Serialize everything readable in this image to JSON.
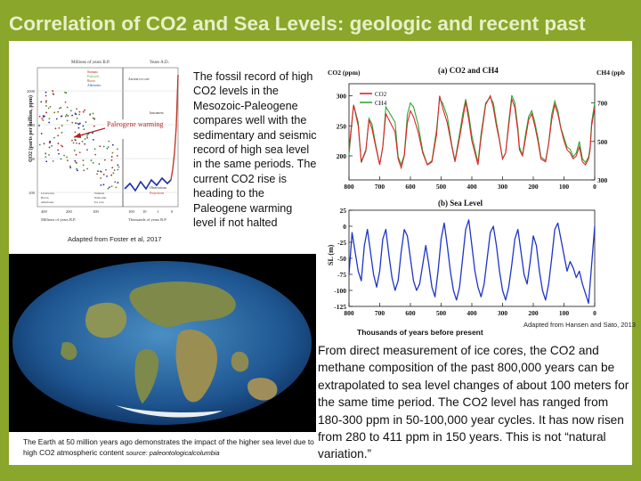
{
  "slide": {
    "title": "Correlation of CO2 and Sea Levels: geologic and recent past",
    "fossil_text": "The fossil record of high CO2 levels in the Mesozoic-Paleogene compares well with the sedimentary and seismic record of high sea level in the same periods.  The current CO2 rise is heading to the Paleogene warming level if not halted",
    "foster_caption": "Adapted from Foster et al, 2017",
    "hansen_caption": "Adapted from Hansen and Sato, 2013",
    "xaxis_note": "Thousands of years before present",
    "bottom_text": "From direct measurement of ice cores, the CO2 and methane composition of the past 800,000 years can be extrapolated to sea level changes of about 100 meters for the same time period.  The CO2 level has ranged from 180-300 ppm in 50-100,000 year cycles.  It has now risen from 280 to 411 ppm in 150 years.  This is not “natural variation.”",
    "earth_caption": "The Earth at 50 million years ago demonstrates the impact of the higher sea level due to high CO2 atmospheric content",
    "earth_source": "source: paleontologicalcolumbia"
  },
  "fossil_chart": {
    "annotation": "Paleogene warming",
    "top_axis_left": "Millions of years B.P.",
    "top_axis_right": "Years A.D.",
    "bottom_axis_left": "Millions of years B.P.",
    "bottom_axis_right": "Thousands of years B.P.",
    "ylabel": "CO2 (parts per million, ppm)",
    "y_ticks": [
      "2000",
      "1000",
      "500",
      "200"
    ],
    "bottom_ticks_left": [
      "400",
      "200",
      "100"
    ],
    "bottom_ticks_right": [
      "100",
      "10",
      "1",
      "0"
    ],
    "labels_top": [
      "Stomata",
      "Paleosols",
      "Boron",
      "Alkenones"
    ],
    "labels_right": [
      "Ancient ice core",
      "Instrument",
      "Observations",
      "Projections"
    ],
    "labels_bottom": [
      "Liverworts",
      "Boron",
      "Alkenones",
      "Stomata",
      "Nahcolite",
      "Ice core"
    ],
    "colors": {
      "ice": "#1a2ea8",
      "projection": "#c0392b",
      "paleo": "#6a7a2e"
    }
  },
  "chart_data": [
    {
      "type": "line",
      "title": "(a) CO2 and CH4",
      "xlabel": "",
      "ylabel_left": "CO2 (ppm)",
      "ylabel_right": "CH4 (ppb)",
      "xlim": [
        800,
        0
      ],
      "ylim_left": [
        160,
        320
      ],
      "ylim_right": [
        300,
        800
      ],
      "x_ticks": [
        800,
        700,
        600,
        500,
        400,
        300,
        200,
        100,
        0
      ],
      "y_ticks_left": [
        200,
        250,
        300
      ],
      "y_ticks_right": [
        300,
        500,
        700
      ],
      "series": [
        {
          "name": "CO2",
          "color": "#e0242a",
          "x": [
            800,
            785,
            770,
            760,
            745,
            735,
            725,
            715,
            700,
            690,
            680,
            665,
            650,
            640,
            630,
            620,
            610,
            600,
            590,
            575,
            560,
            545,
            530,
            515,
            505,
            495,
            480,
            465,
            455,
            440,
            430,
            420,
            410,
            400,
            390,
            380,
            370,
            355,
            340,
            330,
            320,
            310,
            300,
            290,
            280,
            270,
            260,
            250,
            245,
            235,
            225,
            215,
            205,
            195,
            185,
            175,
            160,
            150,
            140,
            130,
            120,
            110,
            100,
            90,
            80,
            70,
            60,
            50,
            40,
            30,
            20,
            15,
            10,
            5,
            0
          ],
          "y": [
            210,
            285,
            250,
            190,
            210,
            260,
            245,
            220,
            185,
            215,
            270,
            255,
            240,
            195,
            180,
            200,
            255,
            275,
            265,
            240,
            205,
            185,
            190,
            235,
            300,
            280,
            255,
            215,
            190,
            230,
            260,
            290,
            260,
            225,
            205,
            185,
            230,
            285,
            300,
            280,
            250,
            225,
            195,
            205,
            250,
            295,
            280,
            240,
            210,
            200,
            230,
            260,
            270,
            250,
            225,
            195,
            190,
            220,
            260,
            285,
            270,
            245,
            225,
            210,
            205,
            195,
            200,
            215,
            190,
            185,
            195,
            210,
            250,
            265,
            280
          ]
        },
        {
          "name": "CH4",
          "color": "#2fa832",
          "x": [
            800,
            785,
            770,
            760,
            745,
            735,
            725,
            715,
            700,
            690,
            680,
            665,
            650,
            640,
            630,
            620,
            610,
            600,
            590,
            575,
            560,
            545,
            530,
            515,
            505,
            495,
            480,
            465,
            455,
            440,
            430,
            420,
            410,
            400,
            390,
            380,
            370,
            355,
            340,
            330,
            320,
            310,
            300,
            290,
            280,
            270,
            260,
            250,
            245,
            235,
            225,
            215,
            205,
            195,
            185,
            175,
            160,
            150,
            140,
            130,
            120,
            110,
            100,
            90,
            80,
            70,
            60,
            50,
            40,
            30,
            20,
            15,
            10,
            5,
            0
          ],
          "y": [
            430,
            690,
            600,
            390,
            450,
            620,
            590,
            500,
            380,
            470,
            680,
            640,
            600,
            420,
            380,
            430,
            640,
            700,
            680,
            590,
            450,
            380,
            400,
            560,
            720,
            700,
            630,
            480,
            400,
            540,
            640,
            720,
            640,
            530,
            460,
            390,
            540,
            700,
            730,
            700,
            600,
            510,
            410,
            440,
            600,
            740,
            700,
            570,
            470,
            430,
            540,
            630,
            660,
            600,
            520,
            420,
            400,
            490,
            640,
            710,
            660,
            570,
            520,
            470,
            460,
            420,
            440,
            500,
            410,
            390,
            420,
            470,
            600,
            650,
            700
          ]
        }
      ]
    },
    {
      "type": "line",
      "title": "(b) Sea Level",
      "xlabel": "Thousands of years before present",
      "ylabel": "SL (m)",
      "xlim": [
        800,
        0
      ],
      "ylim": [
        -125,
        25
      ],
      "x_ticks": [
        800,
        700,
        600,
        500,
        400,
        300,
        200,
        100,
        0
      ],
      "y_ticks": [
        25,
        0,
        -25,
        -50,
        -75,
        -100,
        -125
      ],
      "series": [
        {
          "name": "",
          "color": "#1f35c8",
          "x": [
            800,
            790,
            780,
            770,
            760,
            750,
            740,
            730,
            720,
            710,
            700,
            690,
            680,
            670,
            660,
            650,
            640,
            630,
            620,
            610,
            600,
            590,
            580,
            570,
            560,
            550,
            540,
            530,
            520,
            510,
            500,
            490,
            480,
            470,
            460,
            450,
            440,
            430,
            420,
            410,
            400,
            390,
            380,
            370,
            360,
            350,
            340,
            330,
            320,
            310,
            300,
            290,
            280,
            270,
            260,
            250,
            240,
            230,
            220,
            210,
            200,
            190,
            180,
            170,
            160,
            150,
            140,
            130,
            120,
            110,
            100,
            90,
            80,
            70,
            60,
            50,
            40,
            30,
            20,
            10,
            0
          ],
          "y": [
            -75,
            -10,
            -40,
            -70,
            -85,
            -30,
            -5,
            -40,
            -75,
            -95,
            -70,
            -20,
            -5,
            -45,
            -80,
            -100,
            -85,
            -40,
            -5,
            -15,
            -50,
            -85,
            -100,
            -90,
            -60,
            -30,
            -60,
            -95,
            -110,
            -70,
            -20,
            5,
            -30,
            -70,
            -100,
            -115,
            -95,
            -50,
            -5,
            10,
            -30,
            -70,
            -95,
            -110,
            -90,
            -50,
            -10,
            0,
            -30,
            -70,
            -100,
            -115,
            -95,
            -60,
            -20,
            -5,
            -40,
            -75,
            -90,
            -55,
            -15,
            -30,
            -70,
            -100,
            -115,
            -90,
            -50,
            -5,
            5,
            -20,
            -45,
            -70,
            -55,
            -65,
            -80,
            -70,
            -90,
            -105,
            -120,
            -60,
            0
          ]
        }
      ]
    }
  ]
}
